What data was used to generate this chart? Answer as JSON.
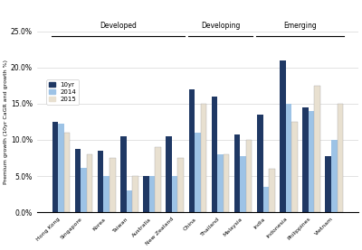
{
  "categories": [
    "Hong Kong",
    "Singapore",
    "Korea",
    "Taiwan",
    "Australia",
    "New Zealand",
    "China",
    "Thailand",
    "Malaysia",
    "India",
    "Indonesia",
    "Philippines",
    "Vietnam"
  ],
  "values_10yr": [
    12.5,
    8.7,
    8.5,
    10.5,
    5.0,
    10.5,
    17.0,
    16.0,
    10.7,
    13.5,
    21.0,
    14.5,
    7.8
  ],
  "values_2014": [
    12.3,
    6.1,
    5.0,
    3.0,
    5.0,
    5.0,
    11.0,
    8.0,
    7.8,
    3.5,
    15.0,
    14.0,
    10.0
  ],
  "values_2015": [
    11.0,
    8.0,
    7.5,
    5.0,
    9.0,
    7.5,
    15.0,
    8.0,
    10.0,
    6.0,
    12.5,
    17.5,
    15.0
  ],
  "color_10yr": "#1F3864",
  "color_2014": "#9DC3E6",
  "color_2015": "#E8E0D0",
  "ylabel": "Premium growth (10yr CaGR and growth %)",
  "ylim": [
    0.0,
    25.0
  ],
  "yticks": [
    0.0,
    5.0,
    10.0,
    15.0,
    20.0,
    25.0
  ],
  "ytick_labels": [
    "0.0%",
    "5.0%",
    "10.0%",
    "15.0%",
    "20.0%",
    "25.0%"
  ],
  "legend_labels": [
    "10yr",
    "2014",
    "2015"
  ],
  "bg_color": "#FFFFFF",
  "bar_width": 0.26,
  "group_defs": [
    [
      0,
      5,
      "Developed"
    ],
    [
      6,
      8,
      "Developing"
    ],
    [
      9,
      12,
      "Emerging"
    ]
  ]
}
